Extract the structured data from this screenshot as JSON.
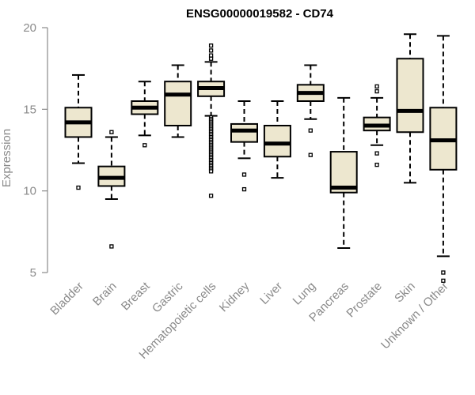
{
  "chart_data": {
    "type": "boxplot",
    "title": "ENSG00000019582 - CD74",
    "xlabel": "",
    "ylabel": "Expression",
    "ylim": [
      4,
      20.5
    ],
    "yticks": [
      5,
      10,
      15,
      20
    ],
    "box_fill": "#ede7cf",
    "categories": [
      "Bladder",
      "Brain",
      "Breast",
      "Gastric",
      "Hematopoietic cells",
      "Kidney",
      "Liver",
      "Lung",
      "Pancreas",
      "Prostate",
      "Skin",
      "Unknown / Other"
    ],
    "boxes": [
      {
        "name": "Bladder",
        "whisker_low": 11.7,
        "q1": 13.3,
        "median": 14.2,
        "q3": 15.1,
        "whisker_high": 17.1,
        "outliers": [
          10.2
        ]
      },
      {
        "name": "Brain",
        "whisker_low": 9.5,
        "q1": 10.3,
        "median": 10.8,
        "q3": 11.5,
        "whisker_high": 13.3,
        "outliers": [
          13.6,
          6.6
        ]
      },
      {
        "name": "Breast",
        "whisker_low": 13.4,
        "q1": 14.7,
        "median": 15.1,
        "q3": 15.5,
        "whisker_high": 16.7,
        "outliers": [
          12.8
        ]
      },
      {
        "name": "Gastric",
        "whisker_low": 13.3,
        "q1": 14.0,
        "median": 15.9,
        "q3": 16.7,
        "whisker_high": 17.7,
        "outliers": []
      },
      {
        "name": "Hematopoietic cells",
        "whisker_low": 14.6,
        "q1": 15.8,
        "median": 16.3,
        "q3": 16.7,
        "whisker_high": 17.9,
        "outliers": [
          18.1,
          18.3,
          18.6,
          18.9,
          14.5,
          14.4,
          14.3,
          14.2,
          14.1,
          14.0,
          13.9,
          13.8,
          13.7,
          13.6,
          13.5,
          13.4,
          13.3,
          13.2,
          13.1,
          13.0,
          12.9,
          12.8,
          12.7,
          12.6,
          12.5,
          12.4,
          12.3,
          12.2,
          12.1,
          12.0,
          11.9,
          11.8,
          11.7,
          11.6,
          11.5,
          11.4,
          11.3,
          11.2,
          9.7
        ]
      },
      {
        "name": "Kidney",
        "whisker_low": 12.0,
        "q1": 13.0,
        "median": 13.7,
        "q3": 14.1,
        "whisker_high": 15.5,
        "outliers": [
          11.0,
          10.1
        ]
      },
      {
        "name": "Liver",
        "whisker_low": 10.8,
        "q1": 12.1,
        "median": 12.9,
        "q3": 14.0,
        "whisker_high": 15.5,
        "outliers": []
      },
      {
        "name": "Lung",
        "whisker_low": 14.4,
        "q1": 15.5,
        "median": 16.0,
        "q3": 16.5,
        "whisker_high": 17.7,
        "outliers": [
          13.7,
          12.2
        ]
      },
      {
        "name": "Pancreas",
        "whisker_low": 6.5,
        "q1": 9.9,
        "median": 10.2,
        "q3": 12.4,
        "whisker_high": 15.7,
        "outliers": []
      },
      {
        "name": "Prostate",
        "whisker_low": 12.8,
        "q1": 13.7,
        "median": 14.0,
        "q3": 14.5,
        "whisker_high": 15.7,
        "outliers": [
          16.1,
          16.4,
          12.3,
          11.6
        ]
      },
      {
        "name": "Skin",
        "whisker_low": 10.5,
        "q1": 13.6,
        "median": 14.9,
        "q3": 18.1,
        "whisker_high": 19.6,
        "outliers": []
      },
      {
        "name": "Unknown / Other",
        "whisker_low": 6.0,
        "q1": 11.3,
        "median": 13.1,
        "q3": 15.1,
        "whisker_high": 19.5,
        "outliers": [
          5.0,
          4.5
        ]
      }
    ]
  }
}
